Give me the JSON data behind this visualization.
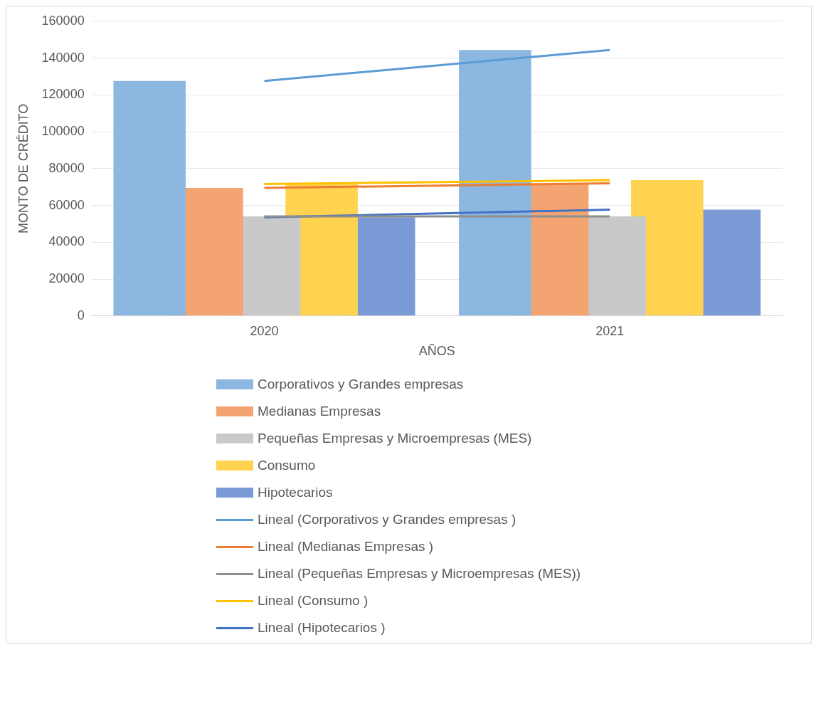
{
  "chart_data": {
    "type": "bar",
    "xlabel": "AÑOS",
    "ylabel": "MONTO DE CRÉDITO",
    "categories": [
      "2020",
      "2021"
    ],
    "series": [
      {
        "name": "Corporativos y Grandes empresas",
        "color": "#8cb7e0",
        "values": [
          127600,
          144400
        ]
      },
      {
        "name": "Medianas Empresas",
        "color": "#f3a470",
        "values": [
          69500,
          72000
        ]
      },
      {
        "name": "Pequeñas Empresas y Microempresas (MES)",
        "color": "#c9c9c9",
        "values": [
          54000,
          54000
        ]
      },
      {
        "name": "Consumo",
        "color": "#ffd34f",
        "values": [
          71600,
          73700
        ]
      },
      {
        "name": "Hipotecarios",
        "color": "#7b9bd6",
        "values": [
          53500,
          57700
        ]
      },
      {
        "name": "Lineal (Corporativos y Grandes empresas )",
        "type": "line",
        "color": "#5b9bd5",
        "values": [
          127600,
          144400
        ]
      },
      {
        "name": "Lineal (Medianas Empresas )",
        "type": "line",
        "color": "#ed7d31",
        "values": [
          69500,
          72000
        ]
      },
      {
        "name": "Lineal (Pequeñas Empresas y Microempresas (MES))",
        "type": "line",
        "color": "#8f8f8f",
        "values": [
          54000,
          54000
        ]
      },
      {
        "name": "Lineal (Consumo )",
        "type": "line",
        "color": "#ffc000",
        "values": [
          71600,
          73700
        ]
      },
      {
        "name": "Lineal (Hipotecarios )",
        "type": "line",
        "color": "#4472c4",
        "values": [
          53500,
          57700
        ]
      }
    ],
    "ylim": [
      0,
      160000
    ],
    "yticks": [
      0,
      20000,
      40000,
      60000,
      80000,
      100000,
      120000,
      140000,
      160000
    ],
    "grid": "y",
    "legend": "bottom",
    "marker": "none",
    "line_style": "solid"
  }
}
